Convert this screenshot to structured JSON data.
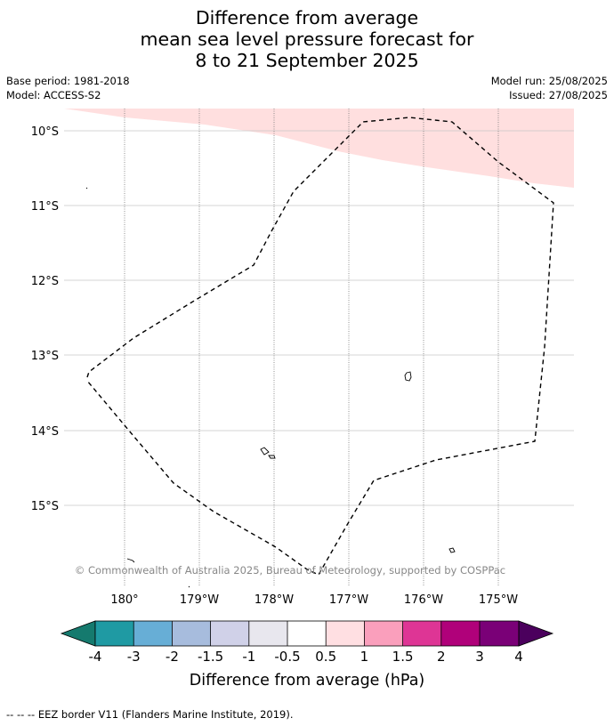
{
  "title": {
    "line1": "Difference from average",
    "line2": "mean sea level pressure forecast for",
    "line3": "8 to 21 September 2025"
  },
  "meta": {
    "base_period": "Base period: 1981-2018",
    "model": "Model: ACCESS-S2",
    "model_run": "Model run: 25/08/2025",
    "issued": "Issued: 27/08/2025"
  },
  "map": {
    "lat_labels": [
      "10°S",
      "11°S",
      "12°S",
      "13°S",
      "14°S",
      "15°S"
    ],
    "lon_labels": [
      "180°",
      "179°W",
      "178°W",
      "177°W",
      "176°W",
      "175°W"
    ],
    "copyright": "© Commonwealth of Australia 2025, Bureau of Meteorology, supported by COSPPac",
    "anomaly_fill_color": "#ffdfdf",
    "eez_line_color": "#000000"
  },
  "colorbar": {
    "colors": [
      "#157a6e",
      "#1f9aa3",
      "#67aed6",
      "#a7bcdd",
      "#d0d1e8",
      "#e8e7ee",
      "#ffffff",
      "#ffdfe2",
      "#fa9fbc",
      "#de3595",
      "#b0017a",
      "#7a0077",
      "#4b005d"
    ],
    "tick_labels": [
      "-4",
      "-3",
      "-2",
      "-1.5",
      "-1",
      "-0.5",
      "0.5",
      "1",
      "1.5",
      "2",
      "3",
      "4"
    ],
    "label": "Difference from average (hPa)"
  },
  "footer": {
    "legend_text": "--  --  -- EEZ border V11 (Flanders Marine Institute, 2019)."
  }
}
